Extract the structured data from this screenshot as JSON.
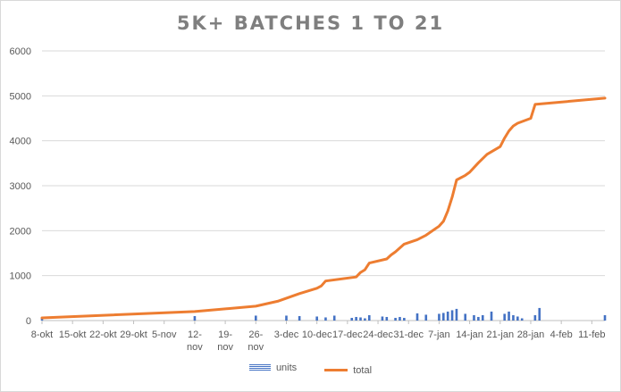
{
  "chart_data": {
    "type": "bar+line",
    "title": "5K+ BATCHES 1 TO 21",
    "xlabel": "",
    "ylabel": "",
    "ylim": [
      0,
      6000
    ],
    "y_ticks": [
      0,
      1000,
      2000,
      3000,
      4000,
      5000,
      6000
    ],
    "x_range": [
      "2021-10-08",
      "2022-02-14"
    ],
    "x_tick_labels": [
      {
        "date": "2021-10-08",
        "label": "8-okt"
      },
      {
        "date": "2021-10-15",
        "label": "15-okt"
      },
      {
        "date": "2021-10-22",
        "label": "22-okt"
      },
      {
        "date": "2021-10-29",
        "label": "29-okt"
      },
      {
        "date": "2021-11-05",
        "label": "5-nov"
      },
      {
        "date": "2021-11-12",
        "label": "12-nov"
      },
      {
        "date": "2021-11-19",
        "label": "19-nov"
      },
      {
        "date": "2021-11-26",
        "label": "26-nov"
      },
      {
        "date": "2021-12-03",
        "label": "3-dec"
      },
      {
        "date": "2021-12-10",
        "label": "10-dec"
      },
      {
        "date": "2021-12-17",
        "label": "17-dec"
      },
      {
        "date": "2021-12-24",
        "label": "24-dec"
      },
      {
        "date": "2021-12-31",
        "label": "31-dec"
      },
      {
        "date": "2022-01-07",
        "label": "7-jan"
      },
      {
        "date": "2022-01-14",
        "label": "14-jan"
      },
      {
        "date": "2022-01-21",
        "label": "21-jan"
      },
      {
        "date": "2022-01-28",
        "label": "28-jan"
      },
      {
        "date": "2022-02-04",
        "label": "4-feb"
      },
      {
        "date": "2022-02-11",
        "label": "11-feb"
      }
    ],
    "legend_position": "bottom",
    "grid": {
      "horizontal": true,
      "vertical": false
    },
    "series": [
      {
        "name": "units",
        "kind": "bar",
        "color": "#4472c4",
        "points": [
          {
            "x": "2021-10-08",
            "y": 60
          },
          {
            "x": "2021-11-12",
            "y": 100
          },
          {
            "x": "2021-11-26",
            "y": 110
          },
          {
            "x": "2021-12-03",
            "y": 110
          },
          {
            "x": "2021-12-06",
            "y": 100
          },
          {
            "x": "2021-12-10",
            "y": 90
          },
          {
            "x": "2021-12-12",
            "y": 70
          },
          {
            "x": "2021-12-14",
            "y": 110
          },
          {
            "x": "2021-12-18",
            "y": 60
          },
          {
            "x": "2021-12-19",
            "y": 80
          },
          {
            "x": "2021-12-20",
            "y": 70
          },
          {
            "x": "2021-12-21",
            "y": 50
          },
          {
            "x": "2021-12-22",
            "y": 120
          },
          {
            "x": "2021-12-25",
            "y": 90
          },
          {
            "x": "2021-12-26",
            "y": 80
          },
          {
            "x": "2021-12-28",
            "y": 60
          },
          {
            "x": "2021-12-29",
            "y": 80
          },
          {
            "x": "2021-12-30",
            "y": 60
          },
          {
            "x": "2022-01-02",
            "y": 160
          },
          {
            "x": "2022-01-04",
            "y": 130
          },
          {
            "x": "2022-01-07",
            "y": 150
          },
          {
            "x": "2022-01-08",
            "y": 170
          },
          {
            "x": "2022-01-09",
            "y": 200
          },
          {
            "x": "2022-01-10",
            "y": 230
          },
          {
            "x": "2022-01-11",
            "y": 260
          },
          {
            "x": "2022-01-13",
            "y": 150
          },
          {
            "x": "2022-01-15",
            "y": 120
          },
          {
            "x": "2022-01-16",
            "y": 80
          },
          {
            "x": "2022-01-17",
            "y": 120
          },
          {
            "x": "2022-01-19",
            "y": 200
          },
          {
            "x": "2022-01-22",
            "y": 150
          },
          {
            "x": "2022-01-23",
            "y": 200
          },
          {
            "x": "2022-01-24",
            "y": 120
          },
          {
            "x": "2022-01-25",
            "y": 90
          },
          {
            "x": "2022-01-26",
            "y": 50
          },
          {
            "x": "2022-01-29",
            "y": 120
          },
          {
            "x": "2022-01-30",
            "y": 280
          },
          {
            "x": "2022-02-14",
            "y": 120
          }
        ]
      },
      {
        "name": "total",
        "kind": "line",
        "color": "#ed7d31",
        "points": [
          {
            "x": "2021-10-08",
            "y": 60
          },
          {
            "x": "2021-11-12",
            "y": 200
          },
          {
            "x": "2021-11-26",
            "y": 320
          },
          {
            "x": "2021-12-01",
            "y": 430
          },
          {
            "x": "2021-12-06",
            "y": 600
          },
          {
            "x": "2021-12-10",
            "y": 720
          },
          {
            "x": "2021-12-11",
            "y": 770
          },
          {
            "x": "2021-12-12",
            "y": 880
          },
          {
            "x": "2021-12-19",
            "y": 970
          },
          {
            "x": "2021-12-20",
            "y": 1070
          },
          {
            "x": "2021-12-21",
            "y": 1130
          },
          {
            "x": "2021-12-22",
            "y": 1280
          },
          {
            "x": "2021-12-26",
            "y": 1370
          },
          {
            "x": "2021-12-27",
            "y": 1460
          },
          {
            "x": "2021-12-28",
            "y": 1530
          },
          {
            "x": "2021-12-30",
            "y": 1700
          },
          {
            "x": "2022-01-02",
            "y": 1800
          },
          {
            "x": "2022-01-04",
            "y": 1900
          },
          {
            "x": "2022-01-07",
            "y": 2100
          },
          {
            "x": "2022-01-08",
            "y": 2210
          },
          {
            "x": "2022-01-09",
            "y": 2440
          },
          {
            "x": "2022-01-10",
            "y": 2750
          },
          {
            "x": "2022-01-11",
            "y": 3130
          },
          {
            "x": "2022-01-13",
            "y": 3230
          },
          {
            "x": "2022-01-14",
            "y": 3300
          },
          {
            "x": "2022-01-16",
            "y": 3510
          },
          {
            "x": "2022-01-18",
            "y": 3700
          },
          {
            "x": "2022-01-21",
            "y": 3870
          },
          {
            "x": "2022-01-22",
            "y": 4060
          },
          {
            "x": "2022-01-23",
            "y": 4220
          },
          {
            "x": "2022-01-24",
            "y": 4330
          },
          {
            "x": "2022-01-25",
            "y": 4390
          },
          {
            "x": "2022-01-28",
            "y": 4500
          },
          {
            "x": "2022-01-29",
            "y": 4810
          },
          {
            "x": "2022-02-14",
            "y": 4950
          }
        ]
      }
    ]
  }
}
